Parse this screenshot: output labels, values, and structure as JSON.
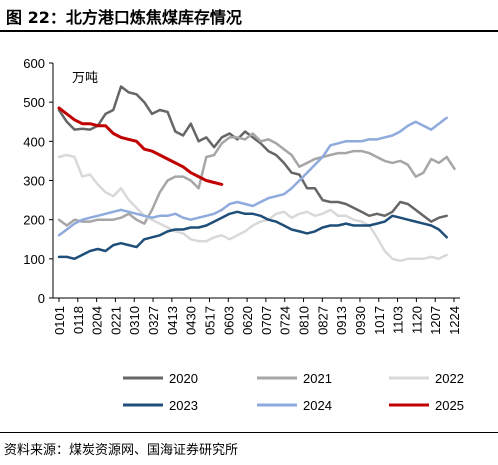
{
  "header": {
    "title": "图 22：北方港口炼焦煤库存情况"
  },
  "footer": {
    "source": "资料来源：煤炭资源网、国海证券研究所"
  },
  "chart_data": {
    "type": "line",
    "title": "北方港口炼焦煤库存情况",
    "unit_label": "万吨",
    "ylim": [
      0,
      600
    ],
    "yticks": [
      0,
      100,
      200,
      300,
      400,
      500,
      600
    ],
    "x_ticks": [
      "0101",
      "0118",
      "0204",
      "0221",
      "0310",
      "0327",
      "0413",
      "0430",
      "0517",
      "0603",
      "0620",
      "0707",
      "0724",
      "0810",
      "0827",
      "0913",
      "0930",
      "1017",
      "1103",
      "1120",
      "1207",
      "1224"
    ],
    "grid": false,
    "legend_position": "bottom",
    "series": [
      {
        "name": "2020",
        "color": "#666666",
        "values": [
          480,
          450,
          430,
          432,
          430,
          440,
          470,
          480,
          540,
          525,
          520,
          500,
          470,
          480,
          475,
          425,
          415,
          445,
          400,
          410,
          385,
          410,
          420,
          405,
          425,
          410,
          395,
          375,
          365,
          345,
          320,
          315,
          280,
          280,
          250,
          245,
          245,
          240,
          230,
          220,
          210,
          215,
          210,
          220,
          245,
          240,
          225,
          210,
          195,
          205,
          210
        ]
      },
      {
        "name": "2021",
        "color": "#a6a6a6",
        "values": [
          200,
          185,
          200,
          195,
          195,
          200,
          200,
          200,
          205,
          215,
          200,
          190,
          225,
          270,
          300,
          310,
          310,
          300,
          280,
          360,
          365,
          395,
          410,
          410,
          405,
          420,
          400,
          405,
          395,
          380,
          365,
          335,
          345,
          355,
          360,
          365,
          370,
          370,
          375,
          375,
          370,
          360,
          350,
          345,
          350,
          340,
          310,
          320,
          355,
          345,
          360,
          330
        ]
      },
      {
        "name": "2022",
        "color": "#d9d9d9",
        "values": [
          360,
          365,
          360,
          310,
          315,
          290,
          270,
          260,
          280,
          250,
          230,
          210,
          200,
          190,
          180,
          170,
          165,
          150,
          145,
          145,
          155,
          160,
          150,
          160,
          170,
          185,
          195,
          200,
          215,
          220,
          205,
          215,
          220,
          210,
          215,
          225,
          210,
          210,
          200,
          195,
          185,
          155,
          120,
          100,
          95,
          100,
          100,
          100,
          105,
          100,
          110
        ]
      },
      {
        "name": "2023",
        "color": "#1f4e79",
        "values": [
          105,
          105,
          100,
          110,
          120,
          125,
          120,
          135,
          140,
          135,
          130,
          150,
          155,
          160,
          170,
          175,
          175,
          180,
          180,
          185,
          195,
          205,
          215,
          220,
          215,
          215,
          210,
          200,
          195,
          185,
          175,
          170,
          165,
          170,
          180,
          185,
          185,
          190,
          185,
          185,
          185,
          190,
          195,
          210,
          205,
          200,
          195,
          190,
          185,
          175,
          155
        ]
      },
      {
        "name": "2024",
        "color": "#8faadc",
        "values": [
          160,
          175,
          190,
          200,
          205,
          210,
          215,
          220,
          225,
          220,
          215,
          210,
          205,
          210,
          210,
          215,
          205,
          200,
          205,
          210,
          215,
          225,
          240,
          245,
          240,
          235,
          245,
          255,
          260,
          265,
          280,
          300,
          320,
          340,
          360,
          390,
          395,
          400,
          400,
          400,
          405,
          405,
          410,
          415,
          425,
          440,
          450,
          440,
          430,
          445,
          460
        ]
      },
      {
        "name": "2025",
        "color": "#c00000",
        "values": [
          485,
          470,
          455,
          445,
          445,
          440,
          440,
          420,
          410,
          405,
          400,
          380,
          375,
          365,
          355,
          345,
          335,
          320,
          310,
          300,
          295,
          290
        ]
      }
    ]
  }
}
